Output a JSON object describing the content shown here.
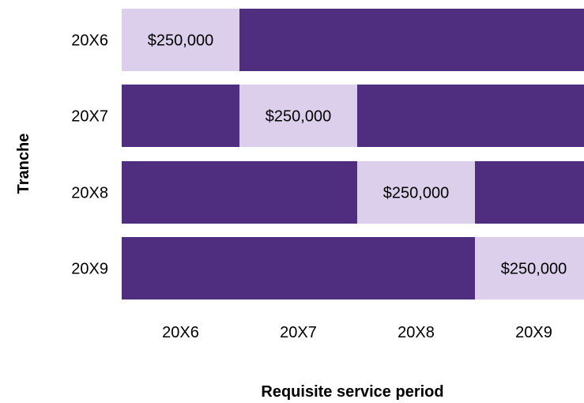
{
  "chart_data": {
    "type": "bar",
    "orientation": "horizontal",
    "layout": "timeline",
    "title": "",
    "xlabel": "Requisite service period",
    "ylabel": "Tranche",
    "categories": [
      "20X6",
      "20X7",
      "20X8",
      "20X9"
    ],
    "periods": [
      "20X6",
      "20X7",
      "20X8",
      "20X9"
    ],
    "tranches": [
      {
        "label": "20X6",
        "active_period_index": 0,
        "value_label": "$250,000",
        "value": 250000
      },
      {
        "label": "20X7",
        "active_period_index": 1,
        "value_label": "$250,000",
        "value": 250000
      },
      {
        "label": "20X8",
        "active_period_index": 2,
        "value_label": "$250,000",
        "value": 250000
      },
      {
        "label": "20X9",
        "active_period_index": 3,
        "value_label": "$250,000",
        "value": 250000
      }
    ],
    "colors": {
      "active": "#DCCFEC",
      "inactive": "#4F2D7F"
    },
    "grid": false,
    "legend": "none"
  }
}
